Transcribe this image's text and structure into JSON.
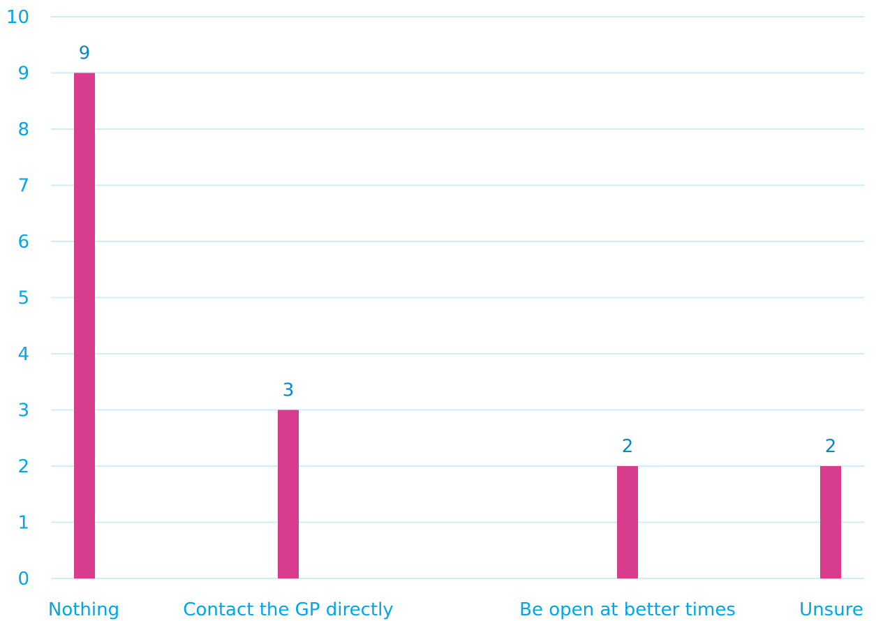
{
  "chart_data": {
    "type": "bar",
    "categories": [
      "Nothing",
      "Contact the GP directly",
      "Be open at better times",
      "Unsure"
    ],
    "values": [
      9,
      3,
      2,
      2
    ],
    "data_labels": [
      "9",
      "3",
      "2",
      "2"
    ],
    "yticks": [
      "0",
      "1",
      "2",
      "3",
      "4",
      "5",
      "6",
      "7",
      "8",
      "9",
      "10"
    ],
    "ylim": [
      0,
      10
    ],
    "grid": true,
    "legend": "none",
    "colors": {
      "bar": "#d83c8c",
      "axis_text": "#00a6e6",
      "data_label": "#0a87c2",
      "grid": "#cdeef9"
    }
  }
}
